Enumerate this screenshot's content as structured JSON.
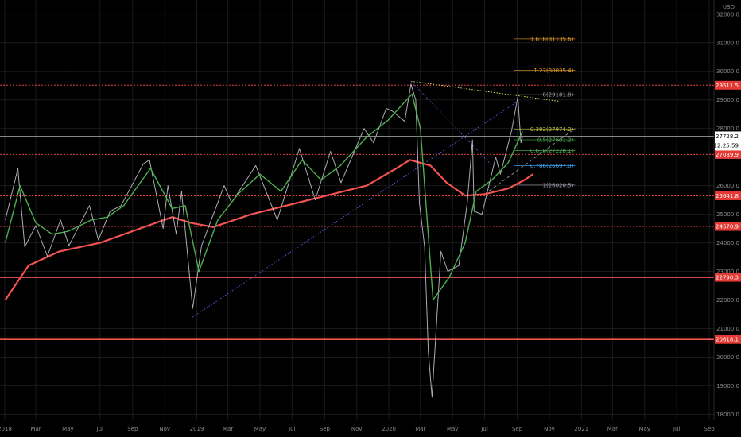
{
  "chart_data": {
    "type": "line",
    "currency": "USD",
    "x_ticks": [
      "2018",
      "Mar",
      "May",
      "Jul",
      "Sep",
      "Nov",
      "2019",
      "Mar",
      "May",
      "Jul",
      "Sep",
      "Nov",
      "2020",
      "Mar",
      "May",
      "Jul",
      "Sep",
      "Nov",
      "2021",
      "Mar",
      "May",
      "Jul",
      "Sep"
    ],
    "y_ticks": [
      18000,
      19000,
      20000,
      21000,
      22000,
      23000,
      24000,
      25000,
      26000,
      27000,
      28000,
      29000,
      30000,
      31000,
      32000
    ],
    "y_tick_labels": [
      "18000.0",
      "19000.0",
      "20000.0",
      "21000.0",
      "22000.0",
      "23000.0",
      "24000.0",
      "25000.0",
      "26000.0",
      "27000.0",
      "28000.0",
      "29000.0",
      "30000.0",
      "31000.0",
      "32000.0"
    ],
    "ylim": [
      17900,
      32300
    ],
    "grid": true,
    "x_range": [
      "2018-01-01",
      "2021-10-01"
    ],
    "price_series": {
      "color": "#c8cad4",
      "points": [
        [
          "2018-01-02",
          24800
        ],
        [
          "2018-01-26",
          26600
        ],
        [
          "2018-02-08",
          23860
        ],
        [
          "2018-03-01",
          24600
        ],
        [
          "2018-03-23",
          23530
        ],
        [
          "2018-04-17",
          24800
        ],
        [
          "2018-05-03",
          23900
        ],
        [
          "2018-06-11",
          25300
        ],
        [
          "2018-06-28",
          24100
        ],
        [
          "2018-07-20",
          25100
        ],
        [
          "2018-08-10",
          25300
        ],
        [
          "2018-09-21",
          26750
        ],
        [
          "2018-10-03",
          26900
        ],
        [
          "2018-10-29",
          24500
        ],
        [
          "2018-11-07",
          26000
        ],
        [
          "2018-11-23",
          24300
        ],
        [
          "2018-12-03",
          25800
        ],
        [
          "2018-12-24",
          21700
        ],
        [
          "2019-01-10",
          23900
        ],
        [
          "2019-02-22",
          26000
        ],
        [
          "2019-03-08",
          25400
        ],
        [
          "2019-04-23",
          26700
        ],
        [
          "2019-06-03",
          24800
        ],
        [
          "2019-07-15",
          27300
        ],
        [
          "2019-08-14",
          25500
        ],
        [
          "2019-09-12",
          27200
        ],
        [
          "2019-10-02",
          26100
        ],
        [
          "2019-11-15",
          28000
        ],
        [
          "2019-12-03",
          27500
        ],
        [
          "2019-12-27",
          28700
        ],
        [
          "2020-01-08",
          28600
        ],
        [
          "2020-01-31",
          28250
        ],
        [
          "2020-02-12",
          29550
        ],
        [
          "2020-02-21",
          29000
        ],
        [
          "2020-02-28",
          25400
        ],
        [
          "2020-03-09",
          23850
        ],
        [
          "2020-03-16",
          20200
        ],
        [
          "2020-03-23",
          18600
        ],
        [
          "2020-04-09",
          23700
        ],
        [
          "2020-04-22",
          23000
        ],
        [
          "2020-05-13",
          23200
        ],
        [
          "2020-05-29",
          25400
        ],
        [
          "2020-06-08",
          27600
        ],
        [
          "2020-06-11",
          25100
        ],
        [
          "2020-06-26",
          25000
        ],
        [
          "2020-07-22",
          27000
        ],
        [
          "2020-07-31",
          26400
        ],
        [
          "2020-08-21",
          27900
        ],
        [
          "2020-09-02",
          29100
        ],
        [
          "2020-09-08",
          27500
        ],
        [
          "2020-09-11",
          27700
        ]
      ]
    },
    "ma_fast": {
      "color": "#4caf50",
      "points": [
        [
          "2018-01-02",
          24000
        ],
        [
          "2018-01-30",
          26000
        ],
        [
          "2018-03-01",
          24700
        ],
        [
          "2018-04-01",
          24300
        ],
        [
          "2018-05-01",
          24400
        ],
        [
          "2018-06-15",
          24800
        ],
        [
          "2018-07-15",
          24900
        ],
        [
          "2018-08-15",
          25300
        ],
        [
          "2018-10-05",
          26600
        ],
        [
          "2018-11-15",
          25200
        ],
        [
          "2018-12-10",
          25300
        ],
        [
          "2019-01-05",
          23000
        ],
        [
          "2019-02-10",
          24800
        ],
        [
          "2019-03-20",
          25700
        ],
        [
          "2019-05-01",
          26400
        ],
        [
          "2019-06-10",
          25800
        ],
        [
          "2019-07-20",
          26900
        ],
        [
          "2019-08-25",
          26200
        ],
        [
          "2019-10-01",
          26700
        ],
        [
          "2019-11-20",
          27700
        ],
        [
          "2019-12-31",
          28300
        ],
        [
          "2020-02-14",
          29200
        ],
        [
          "2020-03-01",
          28000
        ],
        [
          "2020-03-25",
          22000
        ],
        [
          "2020-04-25",
          22800
        ],
        [
          "2020-05-25",
          24000
        ],
        [
          "2020-06-15",
          25800
        ],
        [
          "2020-07-15",
          26200
        ],
        [
          "2020-08-15",
          26800
        ],
        [
          "2020-09-11",
          27900
        ]
      ]
    },
    "ma_slow": {
      "color": "#f05350",
      "points": [
        [
          "2018-01-02",
          22000
        ],
        [
          "2018-02-15",
          23200
        ],
        [
          "2018-04-15",
          23700
        ],
        [
          "2018-07-01",
          24000
        ],
        [
          "2018-09-15",
          24500
        ],
        [
          "2018-11-15",
          24900
        ],
        [
          "2018-12-20",
          24700
        ],
        [
          "2019-02-01",
          24550
        ],
        [
          "2019-04-15",
          25000
        ],
        [
          "2019-07-01",
          25350
        ],
        [
          "2019-09-15",
          25700
        ],
        [
          "2019-11-20",
          26000
        ],
        [
          "2020-01-15",
          26600
        ],
        [
          "2020-02-10",
          26900
        ],
        [
          "2020-03-20",
          26700
        ],
        [
          "2020-04-20",
          26100
        ],
        [
          "2020-05-25",
          25650
        ],
        [
          "2020-07-01",
          25700
        ],
        [
          "2020-08-15",
          25900
        ],
        [
          "2020-09-15",
          26200
        ],
        [
          "2020-10-01",
          26400
        ]
      ]
    },
    "horizontal_levels": [
      {
        "value": 29511.5,
        "label": "29511.5",
        "style": "dotted",
        "color": "#e54040"
      },
      {
        "value": 27089.9,
        "label": "27089.9",
        "style": "dotted",
        "color": "#e54040"
      },
      {
        "value": 25641.8,
        "label": "25641.8",
        "style": "dotted",
        "color": "#e54040"
      },
      {
        "value": 24570.9,
        "label": "24570.9",
        "style": "dotted",
        "color": "#e54040"
      },
      {
        "value": 22790.3,
        "label": "22790.3",
        "style": "solid",
        "color": "#f05350"
      },
      {
        "value": 20618.1,
        "label": "20618.1",
        "style": "solid",
        "color": "#f05350"
      }
    ],
    "fibonacci": [
      {
        "label": "1.618(31135.6)",
        "value": 31135.6,
        "color": "#f0a030"
      },
      {
        "label": "1.27(30035.4)",
        "value": 30035.4,
        "color": "#f0a030"
      },
      {
        "label": "0(29181.8)",
        "value": 29181.8,
        "color": "#9aa0aa"
      },
      {
        "label": "0.382(27974.2)",
        "value": 27974.2,
        "color": "#b8c040"
      },
      {
        "label": "0.5(27601.2)",
        "value": 27601.2,
        "color": "#4caf50"
      },
      {
        "label": "0.618(27228.1)",
        "value": 27228.1,
        "color": "#4caf50"
      },
      {
        "label": "0.786(26697.0)",
        "value": 26697.0,
        "color": "#42a5f5"
      },
      {
        "label": "1(26020.5)",
        "value": 26020.5,
        "color": "#9aa0aa"
      }
    ],
    "fib_x_start": "2020-08-25",
    "fib_x_end": "2020-12-20",
    "trendlines": [
      {
        "from": [
          "2020-02-12",
          29650
        ],
        "to": [
          "2020-11-20",
          28950
        ],
        "color": "#e8e060",
        "style": "dotted"
      },
      {
        "from": [
          "2018-12-24",
          21400
        ],
        "to": [
          "2020-09-02",
          28950
        ],
        "color": "#5a5ae0",
        "style": "dotted"
      },
      {
        "from": [
          "2020-02-12",
          29650
        ],
        "to": [
          "2020-07-15",
          26700
        ],
        "color": "#5a5ae0",
        "style": "dotted"
      },
      {
        "from": [
          "2020-07-01",
          25700
        ],
        "to": [
          "2020-12-20",
          28000
        ],
        "color": "#888888",
        "style": "dashed"
      }
    ],
    "last_price": {
      "value": 27728.2,
      "label": "27728.2"
    },
    "countdown": {
      "label": "12:25:59"
    }
  }
}
